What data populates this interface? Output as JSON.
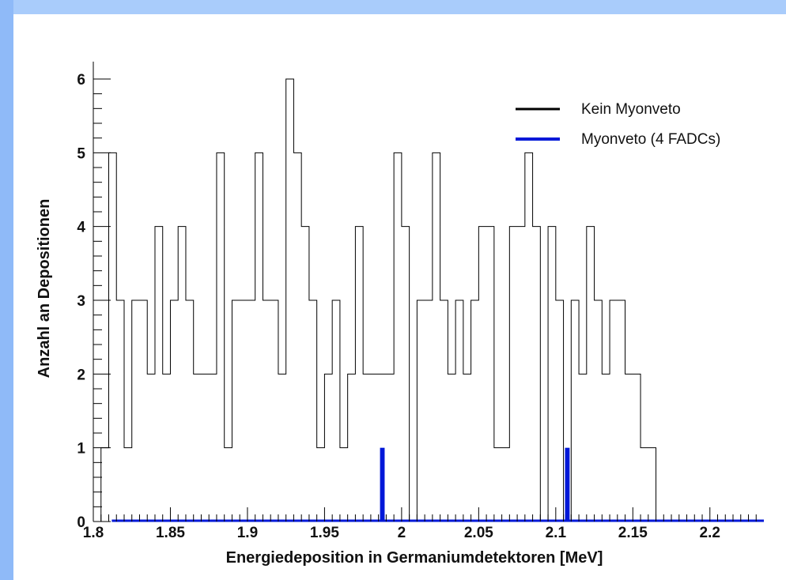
{
  "colors": {
    "edge_top": "#a9ccfb",
    "edge_left": "#8fbaf8",
    "series_main": "#000000",
    "series_veto": "#0018d8"
  },
  "chart_data": {
    "type": "bar",
    "xlabel": "Energiedeposition in Germaniumdetektoren [MeV]",
    "ylabel": "Anzahl an Depositionen",
    "xlim": [
      1.8,
      2.235
    ],
    "ylim": [
      0,
      6
    ],
    "xticks": [
      "1.8",
      "1.85",
      "1.9",
      "1.95",
      "2",
      "2.05",
      "2.1",
      "2.15",
      "2.2"
    ],
    "yticks": [
      "0",
      "1",
      "2",
      "3",
      "4",
      "5",
      "6"
    ],
    "bin_width": 0.005,
    "series": [
      {
        "name": "Kein Myonveto",
        "x": [
          1.8,
          1.805,
          1.81,
          1.815,
          1.82,
          1.825,
          1.83,
          1.835,
          1.84,
          1.845,
          1.85,
          1.855,
          1.86,
          1.865,
          1.87,
          1.875,
          1.88,
          1.885,
          1.89,
          1.895,
          1.9,
          1.905,
          1.91,
          1.915,
          1.92,
          1.925,
          1.93,
          1.935,
          1.94,
          1.945,
          1.95,
          1.955,
          1.96,
          1.965,
          1.97,
          1.975,
          1.98,
          1.985,
          1.99,
          1.995,
          2.0,
          2.005,
          2.01,
          2.015,
          2.02,
          2.025,
          2.03,
          2.035,
          2.04,
          2.045,
          2.05,
          2.055,
          2.06,
          2.065,
          2.07,
          2.075,
          2.08,
          2.085,
          2.09,
          2.095,
          2.1,
          2.105,
          2.11,
          2.115,
          2.12,
          2.125,
          2.13,
          2.135,
          2.14,
          2.145,
          2.15,
          2.155,
          2.16,
          2.165,
          2.17,
          2.175,
          2.18,
          2.185,
          2.19,
          2.195,
          2.2
        ],
        "values": [
          0,
          1,
          5,
          3,
          1,
          3,
          3,
          2,
          4,
          2,
          3,
          4,
          3,
          2,
          2,
          2,
          5,
          1,
          3,
          3,
          3,
          5,
          3,
          3,
          2,
          6,
          5,
          4,
          3,
          1,
          2,
          3,
          1,
          2,
          4,
          2,
          2,
          2,
          2,
          5,
          4,
          0,
          3,
          3,
          5,
          3,
          2,
          3,
          2,
          3,
          4,
          4,
          1,
          1,
          4,
          4,
          5,
          4,
          0,
          4,
          3,
          0,
          3,
          2,
          4,
          3,
          2,
          3,
          3,
          2,
          2,
          1,
          1,
          0,
          0,
          0,
          0,
          0,
          0,
          0,
          0
        ]
      },
      {
        "name": "Myonveto (4 FADCs)",
        "x": [
          1.8,
          1.805,
          1.81,
          1.815,
          1.82,
          1.825,
          1.83,
          1.835,
          1.84,
          1.845,
          1.85,
          1.855,
          1.86,
          1.865,
          1.87,
          1.875,
          1.88,
          1.885,
          1.89,
          1.895,
          1.9,
          1.905,
          1.91,
          1.915,
          1.92,
          1.925,
          1.93,
          1.935,
          1.94,
          1.945,
          1.95,
          1.955,
          1.96,
          1.965,
          1.97,
          1.975,
          1.98,
          1.985,
          1.99,
          1.995,
          2.0,
          2.005,
          2.01,
          2.015,
          2.02,
          2.025,
          2.03,
          2.035,
          2.04,
          2.045,
          2.05,
          2.055,
          2.06,
          2.065,
          2.07,
          2.075,
          2.08,
          2.085,
          2.09,
          2.095,
          2.1,
          2.105,
          2.11,
          2.115,
          2.12,
          2.125,
          2.13,
          2.135,
          2.14,
          2.145,
          2.15,
          2.155,
          2.16,
          2.165,
          2.17,
          2.175,
          2.18,
          2.185,
          2.19,
          2.195,
          2.2
        ],
        "values": [
          0,
          0,
          0,
          0,
          0,
          0,
          0,
          0,
          0,
          0,
          0,
          0,
          0,
          0,
          0,
          0,
          0,
          0,
          0,
          0,
          0,
          0,
          0,
          0,
          0,
          0,
          0,
          0,
          0,
          0,
          0,
          0,
          0,
          0,
          0,
          0,
          0,
          1,
          0,
          0,
          0,
          0,
          0,
          0,
          0,
          0,
          0,
          0,
          0,
          0,
          0,
          0,
          0,
          0,
          0,
          0,
          0,
          0,
          0,
          0,
          0,
          1,
          0,
          0,
          0,
          0,
          0,
          0,
          0,
          0,
          0,
          0,
          0,
          0,
          0,
          0,
          0,
          0,
          0,
          0,
          0
        ]
      }
    ],
    "legend": {
      "placement": "top-right",
      "entries": [
        {
          "label": "Kein Myonveto",
          "color": "#000000"
        },
        {
          "label": "Myonveto (4 FADCs)",
          "color": "#0018d8"
        }
      ]
    },
    "grid": false
  }
}
